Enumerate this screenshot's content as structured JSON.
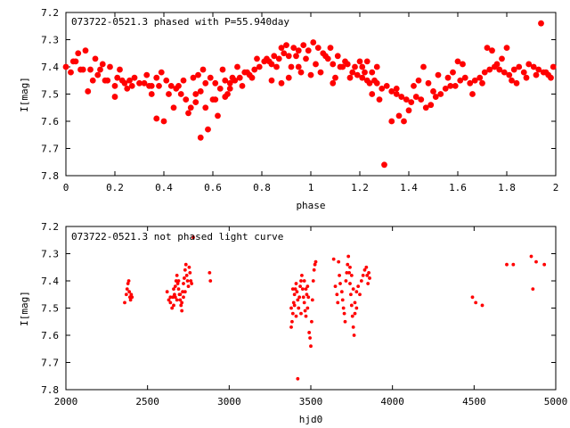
{
  "chart_data": [
    {
      "type": "scatter",
      "title": "073722-0521.3 phased with P=55.940day",
      "xlabel": "phase",
      "ylabel": "I[mag]",
      "xlim": [
        0,
        2
      ],
      "ylim": [
        7.2,
        7.8
      ],
      "y_inverted": true,
      "xticks": [
        "0",
        "0.2",
        "0.4",
        "0.6",
        "0.8",
        "1",
        "1.2",
        "1.4",
        "1.6",
        "1.8",
        "2"
      ],
      "yticks": [
        "7.2",
        "7.3",
        "7.4",
        "7.5",
        "7.6",
        "7.7",
        "7.8"
      ],
      "marker": "filled-circle",
      "color": "#ff0000",
      "points": [
        [
          0.0,
          7.4
        ],
        [
          0.02,
          7.42
        ],
        [
          0.03,
          7.38
        ],
        [
          0.05,
          7.35
        ],
        [
          0.06,
          7.41
        ],
        [
          0.08,
          7.34
        ],
        [
          0.1,
          7.41
        ],
        [
          0.11,
          7.45
        ],
        [
          0.12,
          7.37
        ],
        [
          0.13,
          7.43
        ],
        [
          0.15,
          7.39
        ],
        [
          0.17,
          7.45
        ],
        [
          0.18,
          7.4
        ],
        [
          0.2,
          7.47
        ],
        [
          0.21,
          7.44
        ],
        [
          0.22,
          7.41
        ],
        [
          0.24,
          7.46
        ],
        [
          0.26,
          7.45
        ],
        [
          0.28,
          7.44
        ],
        [
          0.3,
          7.46
        ],
        [
          0.33,
          7.43
        ],
        [
          0.35,
          7.47
        ],
        [
          0.37,
          7.44
        ],
        [
          0.39,
          7.42
        ],
        [
          0.41,
          7.45
        ],
        [
          0.43,
          7.47
        ],
        [
          0.45,
          7.48
        ],
        [
          0.47,
          7.5
        ],
        [
          0.49,
          7.52
        ],
        [
          0.51,
          7.55
        ],
        [
          0.53,
          7.5
        ],
        [
          0.55,
          7.49
        ],
        [
          0.57,
          7.46
        ],
        [
          0.59,
          7.44
        ],
        [
          0.61,
          7.46
        ],
        [
          0.63,
          7.48
        ],
        [
          0.65,
          7.45
        ],
        [
          0.67,
          7.46
        ],
        [
          0.69,
          7.45
        ],
        [
          0.71,
          7.44
        ],
        [
          0.73,
          7.42
        ],
        [
          0.75,
          7.43
        ],
        [
          0.77,
          7.41
        ],
        [
          0.79,
          7.4
        ],
        [
          0.81,
          7.38
        ],
        [
          0.83,
          7.38
        ],
        [
          0.85,
          7.36
        ],
        [
          0.87,
          7.37
        ],
        [
          0.89,
          7.35
        ],
        [
          0.91,
          7.36
        ],
        [
          0.93,
          7.33
        ],
        [
          0.95,
          7.34
        ],
        [
          0.97,
          7.32
        ],
        [
          0.99,
          7.34
        ],
        [
          1.01,
          7.31
        ],
        [
          1.03,
          7.33
        ],
        [
          1.05,
          7.35
        ],
        [
          1.07,
          7.37
        ],
        [
          1.09,
          7.39
        ],
        [
          1.11,
          7.36
        ],
        [
          1.13,
          7.4
        ],
        [
          1.15,
          7.39
        ],
        [
          1.17,
          7.42
        ],
        [
          1.19,
          7.43
        ],
        [
          1.21,
          7.44
        ],
        [
          1.23,
          7.45
        ],
        [
          1.25,
          7.42
        ],
        [
          1.27,
          7.46
        ],
        [
          1.29,
          7.48
        ],
        [
          1.31,
          7.47
        ],
        [
          1.33,
          7.49
        ],
        [
          1.35,
          7.5
        ],
        [
          1.37,
          7.51
        ],
        [
          1.39,
          7.52
        ],
        [
          1.41,
          7.53
        ],
        [
          1.43,
          7.51
        ],
        [
          1.45,
          7.52
        ],
        [
          1.47,
          7.55
        ],
        [
          1.49,
          7.54
        ],
        [
          1.51,
          7.51
        ],
        [
          1.53,
          7.5
        ],
        [
          1.55,
          7.48
        ],
        [
          1.57,
          7.47
        ],
        [
          1.59,
          7.47
        ],
        [
          1.61,
          7.45
        ],
        [
          1.63,
          7.44
        ],
        [
          1.65,
          7.46
        ],
        [
          1.67,
          7.45
        ],
        [
          1.69,
          7.44
        ],
        [
          1.71,
          7.42
        ],
        [
          1.73,
          7.41
        ],
        [
          1.75,
          7.4
        ],
        [
          1.77,
          7.41
        ],
        [
          1.79,
          7.42
        ],
        [
          1.81,
          7.43
        ],
        [
          1.83,
          7.41
        ],
        [
          1.85,
          7.4
        ],
        [
          1.87,
          7.42
        ],
        [
          1.89,
          7.39
        ],
        [
          1.91,
          7.4
        ],
        [
          1.93,
          7.41
        ],
        [
          1.95,
          7.42
        ],
        [
          1.97,
          7.43
        ],
        [
          1.99,
          7.4
        ],
        [
          0.37,
          7.59
        ],
        [
          0.4,
          7.6
        ],
        [
          0.44,
          7.55
        ],
        [
          0.5,
          7.57
        ],
        [
          0.55,
          7.66
        ],
        [
          0.58,
          7.63
        ],
        [
          0.62,
          7.58
        ],
        [
          0.6,
          7.52
        ],
        [
          0.48,
          7.45
        ],
        [
          0.42,
          7.5
        ],
        [
          0.09,
          7.49
        ],
        [
          0.2,
          7.51
        ],
        [
          0.25,
          7.48
        ],
        [
          0.35,
          7.5
        ],
        [
          0.52,
          7.44
        ],
        [
          0.66,
          7.5
        ],
        [
          0.72,
          7.47
        ],
        [
          1.3,
          7.76
        ],
        [
          1.33,
          7.6
        ],
        [
          1.36,
          7.58
        ],
        [
          1.38,
          7.6
        ],
        [
          1.4,
          7.56
        ],
        [
          1.35,
          7.48
        ],
        [
          1.28,
          7.52
        ],
        [
          1.25,
          7.5
        ],
        [
          1.42,
          7.47
        ],
        [
          1.44,
          7.45
        ],
        [
          1.46,
          7.4
        ],
        [
          1.48,
          7.46
        ],
        [
          1.5,
          7.49
        ],
        [
          1.52,
          7.43
        ],
        [
          1.56,
          7.44
        ],
        [
          1.58,
          7.42
        ],
        [
          1.6,
          7.38
        ],
        [
          1.62,
          7.39
        ],
        [
          1.66,
          7.5
        ],
        [
          1.7,
          7.46
        ],
        [
          1.72,
          7.33
        ],
        [
          1.74,
          7.34
        ],
        [
          1.76,
          7.39
        ],
        [
          1.78,
          7.37
        ],
        [
          1.8,
          7.33
        ],
        [
          1.82,
          7.45
        ],
        [
          1.84,
          7.46
        ],
        [
          1.88,
          7.44
        ],
        [
          1.92,
          7.43
        ],
        [
          1.94,
          7.24
        ],
        [
          1.96,
          7.42
        ],
        [
          1.98,
          7.44
        ],
        [
          0.82,
          7.37
        ],
        [
          0.84,
          7.45
        ],
        [
          0.86,
          7.4
        ],
        [
          0.88,
          7.33
        ],
        [
          0.9,
          7.32
        ],
        [
          0.92,
          7.4
        ],
        [
          0.94,
          7.36
        ],
        [
          0.96,
          7.42
        ],
        [
          0.98,
          7.37
        ],
        [
          1.0,
          7.43
        ],
        [
          1.02,
          7.39
        ],
        [
          1.04,
          7.42
        ],
        [
          1.06,
          7.36
        ],
        [
          1.08,
          7.33
        ],
        [
          1.1,
          7.44
        ],
        [
          1.12,
          7.4
        ],
        [
          1.14,
          7.38
        ],
        [
          1.16,
          7.44
        ],
        [
          1.18,
          7.4
        ],
        [
          1.2,
          7.38
        ],
        [
          1.22,
          7.42
        ],
        [
          1.24,
          7.46
        ],
        [
          1.26,
          7.45
        ],
        [
          0.78,
          7.37
        ],
        [
          0.76,
          7.44
        ],
        [
          0.74,
          7.42
        ],
        [
          0.7,
          7.4
        ],
        [
          0.68,
          7.44
        ],
        [
          0.64,
          7.41
        ],
        [
          0.56,
          7.41
        ],
        [
          0.54,
          7.43
        ],
        [
          0.46,
          7.47
        ],
        [
          0.38,
          7.47
        ],
        [
          0.34,
          7.47
        ],
        [
          0.32,
          7.46
        ],
        [
          0.27,
          7.47
        ],
        [
          0.23,
          7.45
        ],
        [
          0.16,
          7.45
        ],
        [
          0.14,
          7.41
        ],
        [
          0.07,
          7.41
        ],
        [
          0.04,
          7.38
        ],
        [
          0.91,
          7.44
        ],
        [
          0.95,
          7.4
        ],
        [
          1.09,
          7.46
        ],
        [
          1.21,
          7.4
        ],
        [
          1.23,
          7.38
        ],
        [
          1.27,
          7.4
        ],
        [
          0.88,
          7.46
        ],
        [
          0.84,
          7.39
        ],
        [
          0.61,
          7.52
        ],
        [
          0.65,
          7.51
        ],
        [
          0.67,
          7.48
        ],
        [
          0.53,
          7.53
        ],
        [
          0.57,
          7.55
        ]
      ]
    },
    {
      "type": "scatter",
      "title": "073722-0521.3 not phased light curve",
      "xlabel": "hjd0",
      "ylabel": "I[mag]",
      "xlim": [
        2000,
        5000
      ],
      "ylim": [
        7.2,
        7.8
      ],
      "y_inverted": true,
      "xticks": [
        "2000",
        "2500",
        "3000",
        "3500",
        "4000",
        "4500",
        "5000"
      ],
      "yticks": [
        "7.2",
        "7.3",
        "7.4",
        "7.5",
        "7.6",
        "7.7",
        "7.8"
      ],
      "marker": "small-dot",
      "color": "#ff0000",
      "points": [
        [
          2360,
          7.48
        ],
        [
          2370,
          7.45
        ],
        [
          2375,
          7.43
        ],
        [
          2380,
          7.41
        ],
        [
          2385,
          7.4
        ],
        [
          2388,
          7.44
        ],
        [
          2392,
          7.46
        ],
        [
          2396,
          7.47
        ],
        [
          2400,
          7.45
        ],
        [
          2405,
          7.46
        ],
        [
          2620,
          7.44
        ],
        [
          2630,
          7.47
        ],
        [
          2640,
          7.48
        ],
        [
          2650,
          7.5
        ],
        [
          2655,
          7.46
        ],
        [
          2660,
          7.43
        ],
        [
          2665,
          7.45
        ],
        [
          2670,
          7.42
        ],
        [
          2675,
          7.4
        ],
        [
          2680,
          7.38
        ],
        [
          2685,
          7.41
        ],
        [
          2690,
          7.43
        ],
        [
          2695,
          7.45
        ],
        [
          2700,
          7.47
        ],
        [
          2705,
          7.49
        ],
        [
          2710,
          7.51
        ],
        [
          2715,
          7.44
        ],
        [
          2720,
          7.41
        ],
        [
          2725,
          7.39
        ],
        [
          2730,
          7.36
        ],
        [
          2735,
          7.34
        ],
        [
          2740,
          7.38
        ],
        [
          2745,
          7.4
        ],
        [
          2750,
          7.42
        ],
        [
          2755,
          7.35
        ],
        [
          2760,
          7.37
        ],
        [
          2765,
          7.4
        ],
        [
          2770,
          7.41
        ],
        [
          2780,
          7.24
        ],
        [
          2880,
          7.37
        ],
        [
          2885,
          7.4
        ],
        [
          2640,
          7.46
        ],
        [
          2660,
          7.49
        ],
        [
          2700,
          7.45
        ],
        [
          2710,
          7.48
        ],
        [
          2720,
          7.46
        ],
        [
          2730,
          7.44
        ],
        [
          2690,
          7.4
        ],
        [
          2680,
          7.47
        ],
        [
          2670,
          7.46
        ],
        [
          3380,
          7.57
        ],
        [
          3385,
          7.55
        ],
        [
          3390,
          7.52
        ],
        [
          3395,
          7.48
        ],
        [
          3400,
          7.45
        ],
        [
          3405,
          7.43
        ],
        [
          3410,
          7.41
        ],
        [
          3415,
          7.44
        ],
        [
          3420,
          7.47
        ],
        [
          3425,
          7.5
        ],
        [
          3430,
          7.46
        ],
        [
          3435,
          7.42
        ],
        [
          3440,
          7.4
        ],
        [
          3445,
          7.38
        ],
        [
          3450,
          7.43
        ],
        [
          3455,
          7.46
        ],
        [
          3460,
          7.48
        ],
        [
          3465,
          7.51
        ],
        [
          3470,
          7.53
        ],
        [
          3475,
          7.45
        ],
        [
          3480,
          7.42
        ],
        [
          3490,
          7.59
        ],
        [
          3495,
          7.61
        ],
        [
          3500,
          7.64
        ],
        [
          3505,
          7.55
        ],
        [
          3510,
          7.47
        ],
        [
          3515,
          7.4
        ],
        [
          3520,
          7.36
        ],
        [
          3525,
          7.34
        ],
        [
          3530,
          7.33
        ],
        [
          3420,
          7.76
        ],
        [
          3440,
          7.52
        ],
        [
          3460,
          7.4
        ],
        [
          3400,
          7.49
        ],
        [
          3410,
          7.53
        ],
        [
          3390,
          7.43
        ],
        [
          3470,
          7.43
        ],
        [
          3480,
          7.5
        ],
        [
          3485,
          7.46
        ],
        [
          3380,
          7.5
        ],
        [
          3640,
          7.32
        ],
        [
          3650,
          7.42
        ],
        [
          3660,
          7.45
        ],
        [
          3665,
          7.48
        ],
        [
          3670,
          7.33
        ],
        [
          3675,
          7.38
        ],
        [
          3680,
          7.41
        ],
        [
          3690,
          7.44
        ],
        [
          3695,
          7.47
        ],
        [
          3700,
          7.5
        ],
        [
          3705,
          7.52
        ],
        [
          3710,
          7.55
        ],
        [
          3715,
          7.4
        ],
        [
          3720,
          7.37
        ],
        [
          3725,
          7.34
        ],
        [
          3730,
          7.31
        ],
        [
          3735,
          7.37
        ],
        [
          3740,
          7.41
        ],
        [
          3745,
          7.45
        ],
        [
          3750,
          7.49
        ],
        [
          3755,
          7.53
        ],
        [
          3760,
          7.57
        ],
        [
          3765,
          7.6
        ],
        [
          3770,
          7.48
        ],
        [
          3780,
          7.44
        ],
        [
          3790,
          7.42
        ],
        [
          3800,
          7.45
        ],
        [
          3810,
          7.4
        ],
        [
          3820,
          7.38
        ],
        [
          3830,
          7.36
        ],
        [
          3840,
          7.35
        ],
        [
          3845,
          7.38
        ],
        [
          3850,
          7.41
        ],
        [
          3855,
          7.37
        ],
        [
          3860,
          7.39
        ],
        [
          3740,
          7.35
        ],
        [
          3750,
          7.38
        ],
        [
          3760,
          7.43
        ],
        [
          3770,
          7.52
        ],
        [
          3780,
          7.5
        ],
        [
          4490,
          7.46
        ],
        [
          4510,
          7.48
        ],
        [
          4550,
          7.49
        ],
        [
          4700,
          7.34
        ],
        [
          4740,
          7.34
        ],
        [
          4850,
          7.31
        ],
        [
          4860,
          7.43
        ],
        [
          4880,
          7.33
        ],
        [
          4930,
          7.34
        ]
      ]
    }
  ]
}
